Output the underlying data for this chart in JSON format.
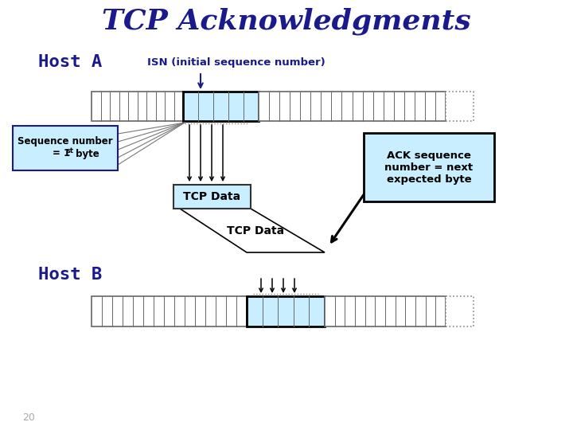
{
  "title": "TCP Acknowledgments",
  "title_color": "#1a1a8c",
  "title_fontsize": 26,
  "host_a_label": "Host A",
  "host_b_label": "Host B",
  "host_label_color": "#1a1a8c",
  "host_label_fontsize": 16,
  "isn_label": "ISN (initial sequence number)",
  "isn_label_color": "#1a1a8c",
  "seq_box_color": "#c8eeff",
  "seq_box_border": "#1a1a8c",
  "tcp_data_label": "TCP Data",
  "tcp_data_fontsize": 10,
  "ack_box_label": "ACK sequence\nnumber = next\nexpected byte",
  "ack_box_color": "#c8eeff",
  "bar_color_light": "#c8eeff",
  "page_num": "20"
}
